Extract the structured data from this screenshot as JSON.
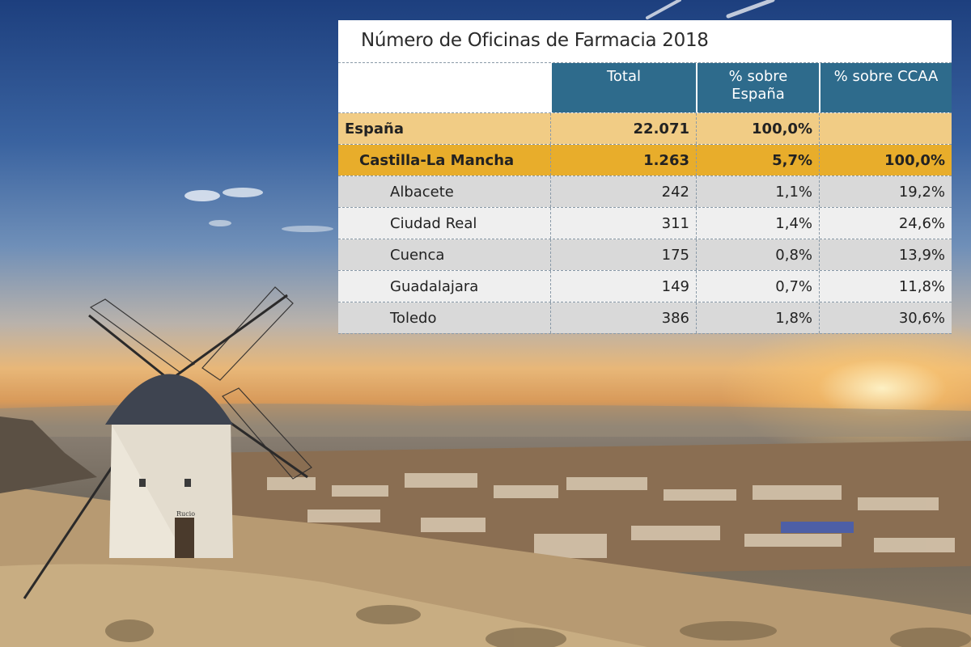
{
  "chart_data": {
    "type": "table",
    "title": "Número de Oficinas de Farmacia 2018",
    "columns": [
      "",
      "Total",
      "% sobre España",
      "% sobre CCAA"
    ],
    "header": {
      "total": "Total",
      "pct_espana_line1": "% sobre",
      "pct_espana_line2": "España",
      "pct_ccaa": "% sobre CCAA"
    },
    "rows": [
      {
        "name": "España",
        "total": "22.071",
        "pct_espana": "100,0%",
        "pct_ccaa": ""
      },
      {
        "name": "Castilla-La Mancha",
        "total": "1.263",
        "pct_espana": "5,7%",
        "pct_ccaa": "100,0%"
      },
      {
        "name": "Albacete",
        "total": "242",
        "pct_espana": "1,1%",
        "pct_ccaa": "19,2%"
      },
      {
        "name": "Ciudad Real",
        "total": "311",
        "pct_espana": "1,4%",
        "pct_ccaa": "24,6%"
      },
      {
        "name": "Cuenca",
        "total": "175",
        "pct_espana": "0,8%",
        "pct_ccaa": "13,9%"
      },
      {
        "name": "Guadalajara",
        "total": "149",
        "pct_espana": "0,7%",
        "pct_ccaa": "11,8%"
      },
      {
        "name": "Toledo",
        "total": "386",
        "pct_espana": "1,8%",
        "pct_ccaa": "30,6%"
      }
    ],
    "colors": {
      "header_bg": "#2e6b8c",
      "espana_bg": "#f1cc85",
      "clm_bg": "#e8ad2b",
      "row_dark": "#d9d9d9",
      "row_light": "#efefef"
    }
  },
  "background": {
    "scene": "windmill-landscape-photo",
    "mill_plaque": "Rucio"
  }
}
